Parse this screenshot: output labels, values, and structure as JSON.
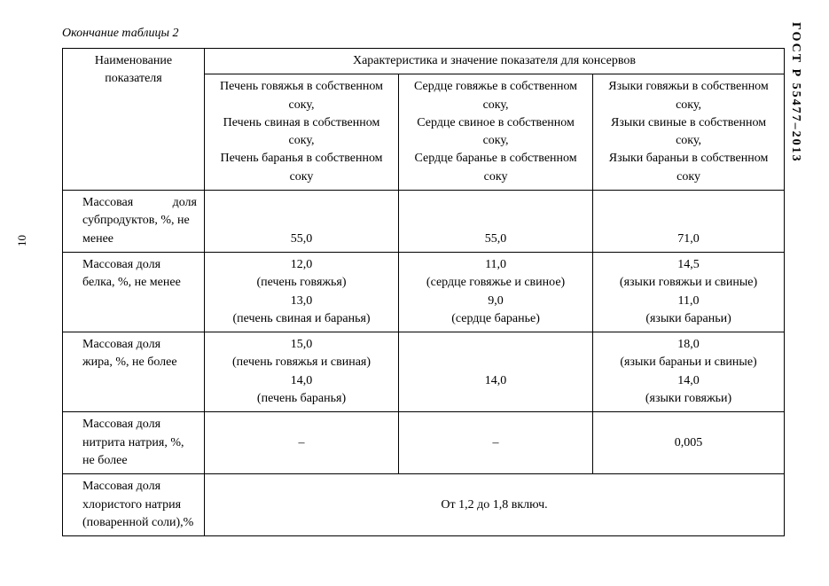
{
  "page_number": "10",
  "gost_code": "ГОСТ Р 55477–2013",
  "caption": "Окончание таблицы 2",
  "colors": {
    "text": "#000000",
    "background": "#ffffff",
    "border": "#000000"
  },
  "typography": {
    "base_font_family": "Times New Roman",
    "base_font_size_pt": 11,
    "caption_style": "italic",
    "gost_weight": "bold"
  },
  "table": {
    "header": {
      "param_title": "Наименование показателя",
      "group_title": "Характеристика и значение показателя для консервов",
      "cols": [
        {
          "lines": [
            "Печень говяжья в собственном соку,",
            "Печень свиная в собственном соку,",
            "Печень баранья в собственном соку"
          ]
        },
        {
          "lines": [
            "Сердце говяжье в собственном соку,",
            "Сердце свиное в собственном соку,",
            "Сердце баранье в собственном соку"
          ]
        },
        {
          "lines": [
            "Языки говяжьи в собственном соку,",
            "Языки свиные в собственном соку,",
            "Языки бараньи в собственном соку"
          ]
        }
      ]
    },
    "rows": [
      {
        "label_lines_html": "<span class=\"justify-label\" style=\"display:block\">Массовая&nbsp;&nbsp;&nbsp;&nbsp;&nbsp;&nbsp;&nbsp;доля</span><span style=\"display:block\">субпродуктов, %, не</span><span style=\"display:block\">менее</span>",
        "c1": "55,0",
        "c2": "55,0",
        "c3": "71,0",
        "bottom_align": true
      },
      {
        "label_lines_html": "<span style=\"display:block;text-indent:14px\">Массовая доля</span><span style=\"display:block\">белка, %, не менее</span>",
        "c1": "12,0<br>(печень говяжья)<br>13,0<br>(печень свиная и баранья)",
        "c2": "11,0<br>(сердце говяжье и свиное)<br>9,0<br>(сердце баранье)",
        "c3": "14,5<br>(языки говяжьи и свиные)<br>11,0<br>(языки бараньи)"
      },
      {
        "label_lines_html": "<span style=\"display:block;text-indent:14px\">Массовая доля</span><span style=\"display:block\">жира, %, не более</span>",
        "c1": "15,0<br>(печень говяжья и свиная)<br>14,0<br>(печень баранья)",
        "c2": "<br>14,0",
        "c3": "18,0<br>(языки бараньи и свиные)<br>14,0<br>(языки говяжьи)"
      },
      {
        "label_lines_html": "<span style=\"display:block;text-indent:14px\">Массовая доля</span><span style=\"display:block\">нитрита натрия, %,</span><span style=\"display:block\">не более</span>",
        "c1": "–",
        "c2": "–",
        "c3": "0,005"
      }
    ],
    "merged_row": {
      "label_lines_html": "<span style=\"display:block;text-indent:14px\">Массовая доля</span><span style=\"display:block\">хлористого натрия</span><span style=\"display:block\">(поваренной соли),%</span>",
      "value": "От  1,2 до 1,8  включ."
    }
  }
}
